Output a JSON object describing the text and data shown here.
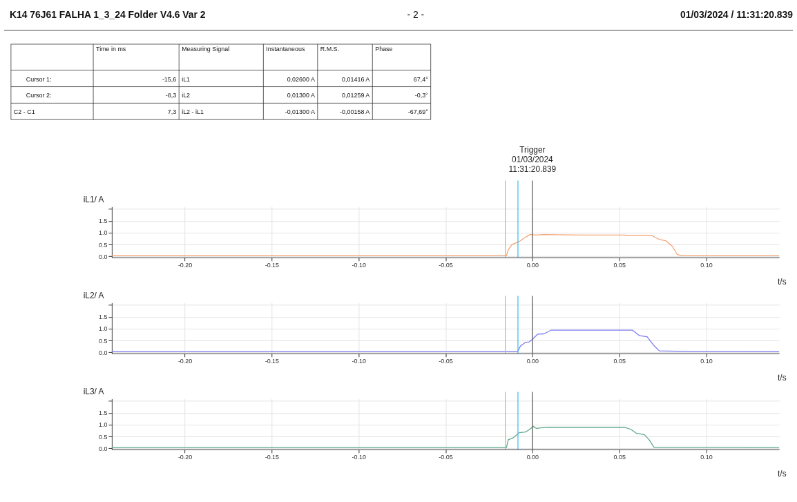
{
  "chart_data": [
    {
      "type": "other",
      "title": "K14 76J61 FALHA 1_3_24   Folder   V4.6 Var 2",
      "annotations": [
        "- 2 -",
        "01/03/2024 / 11:31:20.839",
        "Time in ms",
        "Measuring Signal",
        "Instantaneous",
        "R.M.S.",
        "Phase",
        "Cursor 1:",
        "-15,6",
        "iL1",
        "0,02600 A",
        "0,01416 A",
        "67,4°",
        "Cursor 2:",
        "-8,3",
        "iL2",
        "0,01300 A",
        "0,01259 A",
        "-0,3°",
        "C2 - C1",
        "7,3",
        "iL2 - iL1",
        "-0,01300 A",
        "-0,00158 A",
        "-67,69°"
      ]
    },
    {
      "type": "line",
      "ylabel": "iL1/ A",
      "xlabel": "t/s",
      "xlim": [
        -0.242,
        0.142
      ],
      "ylim": [
        -0.05,
        2.1
      ],
      "xticks": [
        {
          "value": -0.2,
          "label": "-0.20"
        },
        {
          "value": -0.15,
          "label": "-0.15"
        },
        {
          "value": -0.1,
          "label": "-0.10"
        },
        {
          "value": -0.05,
          "label": "-0.05"
        },
        {
          "value": 0,
          "label": "0.00"
        },
        {
          "value": 0.05,
          "label": "0.05"
        },
        {
          "value": 0.1,
          "label": "0.10"
        }
      ],
      "yticks": [
        {
          "value": 0,
          "label": "0.0"
        },
        {
          "value": 0.5,
          "label": "0.5"
        },
        {
          "value": 1,
          "label": "1.0"
        },
        {
          "value": 1.5,
          "label": "1.5"
        },
        {
          "value": 2,
          "label": null
        }
      ],
      "grid": true,
      "series": [
        {
          "color": "#f2a372",
          "x": [
            -0.242,
            -0.0149,
            -0.0139,
            -0.0118,
            -0.0076,
            -0.0048,
            -0.0013,
            0.0022,
            0.0064,
            0.0276,
            0.053,
            0.0545,
            0.0686,
            0.0729,
            0.077,
            0.0806,
            0.0834,
            0.0863,
            0.142
          ],
          "values": [
            0.02,
            0.02,
            0.27,
            0.5,
            0.62,
            0.77,
            0.92,
            0.9,
            0.92,
            0.9,
            0.9,
            0.87,
            0.88,
            0.72,
            0.65,
            0.42,
            0.07,
            0.02,
            0.02
          ]
        }
      ],
      "ref_lines": [
        {
          "axis": "x",
          "value": -0.0156,
          "color": "#f5b400"
        },
        {
          "axis": "x",
          "value": -0.0083,
          "color": "#33bbee"
        },
        {
          "axis": "x",
          "value": 0,
          "color": "#555555"
        }
      ],
      "annotations": [
        "Trigger\n01/03/2024\n11:31:20.839"
      ]
    },
    {
      "type": "line",
      "ylabel": "iL2/ A",
      "xlabel": "t/s",
      "xlim": [
        -0.242,
        0.142
      ],
      "ylim": [
        -0.05,
        2.1
      ],
      "xticks": [
        {
          "value": -0.2,
          "label": "-0.20"
        },
        {
          "value": -0.15,
          "label": "-0.15"
        },
        {
          "value": -0.1,
          "label": "-0.10"
        },
        {
          "value": -0.05,
          "label": "-0.05"
        },
        {
          "value": 0,
          "label": "0.00"
        },
        {
          "value": 0.05,
          "label": "0.05"
        },
        {
          "value": 0.1,
          "label": "0.10"
        }
      ],
      "yticks": [
        {
          "value": 0,
          "label": "0.0"
        },
        {
          "value": 0.5,
          "label": "0.5"
        },
        {
          "value": 1,
          "label": "1.0"
        },
        {
          "value": 1.5,
          "label": "1.5"
        },
        {
          "value": 2,
          "label": null
        }
      ],
      "grid": true,
      "series": [
        {
          "color": "#7b7bf0",
          "x": [
            -0.242,
            -0.0086,
            -0.0068,
            -0.004,
            -0.0018,
            0.0003,
            0.0031,
            0.0066,
            0.0109,
            0.0575,
            0.0617,
            0.066,
            0.0695,
            0.073,
            0.092,
            0.142
          ],
          "values": [
            0.02,
            0.02,
            0.27,
            0.42,
            0.44,
            0.57,
            0.77,
            0.78,
            0.94,
            0.94,
            0.7,
            0.66,
            0.32,
            0.06,
            0.03,
            0.02
          ]
        }
      ],
      "ref_lines": [
        {
          "axis": "x",
          "value": -0.0156,
          "color": "#f5b400"
        },
        {
          "axis": "x",
          "value": -0.0083,
          "color": "#33bbee"
        },
        {
          "axis": "x",
          "value": 0,
          "color": "#555555"
        }
      ]
    },
    {
      "type": "line",
      "ylabel": "iL3/ A",
      "xlabel": "t/s",
      "xlim": [
        -0.242,
        0.142
      ],
      "ylim": [
        -0.05,
        2.1
      ],
      "xticks": [
        {
          "value": -0.2,
          "label": "-0.20"
        },
        {
          "value": -0.15,
          "label": "-0.15"
        },
        {
          "value": -0.1,
          "label": "-0.10"
        },
        {
          "value": -0.05,
          "label": "-0.05"
        },
        {
          "value": 0,
          "label": "0.00"
        },
        {
          "value": 0.05,
          "label": "0.05"
        },
        {
          "value": 0.1,
          "label": "0.10"
        }
      ],
      "yticks": [
        {
          "value": 0,
          "label": "0.0"
        },
        {
          "value": 0.5,
          "label": "0.5"
        },
        {
          "value": 1,
          "label": "1.0"
        },
        {
          "value": 1.5,
          "label": "1.5"
        },
        {
          "value": 2,
          "label": null
        }
      ],
      "grid": true,
      "series": [
        {
          "color": "#5fa88a",
          "x": [
            -0.242,
            -0.0149,
            -0.0139,
            -0.0111,
            -0.0076,
            -0.004,
            -0.0019,
            0.0005,
            0.0023,
            0.0073,
            0.053,
            0.0565,
            0.06,
            0.0644,
            0.0672,
            0.07,
            0.142
          ],
          "values": [
            0.03,
            0.03,
            0.36,
            0.44,
            0.66,
            0.69,
            0.78,
            0.93,
            0.84,
            0.89,
            0.89,
            0.81,
            0.63,
            0.58,
            0.36,
            0.04,
            0.03
          ]
        }
      ],
      "ref_lines": [
        {
          "axis": "x",
          "value": -0.0156,
          "color": "#f5b400"
        },
        {
          "axis": "x",
          "value": -0.0083,
          "color": "#33bbee"
        },
        {
          "axis": "x",
          "value": 0,
          "color": "#555555"
        }
      ]
    }
  ]
}
